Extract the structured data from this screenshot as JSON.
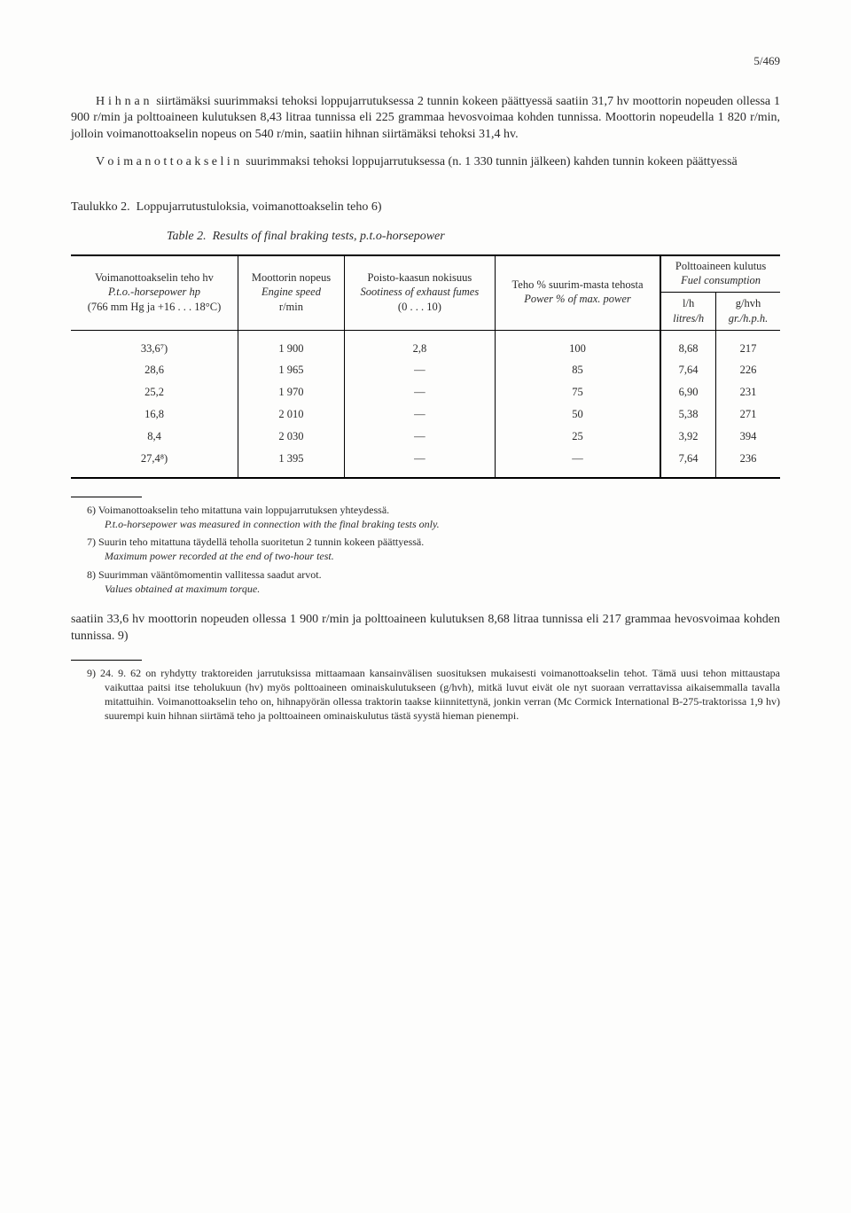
{
  "page_number": "5/469",
  "para1": "H i h n a n  siirtämäksi suurimmaksi tehoksi loppujarrutuksessa 2 tunnin kokeen päättyessä saatiin 31,7 hv moottorin nopeuden ollessa 1 900 r/min ja polttoaineen kulutuksen 8,43 litraa tunnissa eli 225 grammaa hevosvoimaa kohden tunnissa. Moottorin nopeudella 1 820 r/min, jolloin voimanottoakselin nopeus on 540 r/min, saatiin hihnan siirtämäksi tehoksi 31,4 hv.",
  "para2": "V o i m a n o t t o a k s e l i n  suurimmaksi tehoksi loppujarrutuksessa (n. 1 330 tunnin jälkeen) kahden tunnin kokeen päättyessä",
  "table_caption": "Taulukko 2.  Loppujarrutustuloksia, voimanottoakselin teho 6)",
  "table_caption_sub": "Table 2.  Results of final braking tests, p.t.o-horsepower",
  "headers": {
    "col1_a": "Voimanottoakselin teho hv",
    "col1_b": "P.t.o.-horsepower hp",
    "col1_c": "(766 mm Hg ja +16 . . . 18°C)",
    "col2_a": "Moottorin nopeus",
    "col2_b": "Engine speed",
    "col2_c": "r/min",
    "col3_a": "Poisto-kaasun nokisuus",
    "col3_b": "Sootiness of exhaust fumes",
    "col3_c": "(0 . . . 10)",
    "col4_a": "Teho % suurim-masta tehosta",
    "col4_b": "Power % of max. power",
    "col5": "Polttoaineen kulutus",
    "col5_b": "Fuel consumption",
    "col5_1a": "l/h",
    "col5_1b": "litres/h",
    "col5_2a": "g/hvh",
    "col5_2b": "gr./h.p.h."
  },
  "rows": [
    {
      "c1": "33,6⁷)",
      "c2": "1 900",
      "c3": "2,8",
      "c4": "100",
      "c5": "8,68",
      "c6": "217"
    },
    {
      "c1": "28,6",
      "c2": "1 965",
      "c3": "—",
      "c4": "85",
      "c5": "7,64",
      "c6": "226"
    },
    {
      "c1": "25,2",
      "c2": "1 970",
      "c3": "—",
      "c4": "75",
      "c5": "6,90",
      "c6": "231"
    },
    {
      "c1": "16,8",
      "c2": "2 010",
      "c3": "—",
      "c4": "50",
      "c5": "5,38",
      "c6": "271"
    },
    {
      "c1": "8,4",
      "c2": "2 030",
      "c3": "—",
      "c4": "25",
      "c5": "3,92",
      "c6": "394"
    },
    {
      "c1": "27,4⁸)",
      "c2": "1 395",
      "c3": "—",
      "c4": "—",
      "c5": "7,64",
      "c6": "236"
    }
  ],
  "footnotes_a": [
    {
      "n": "6)",
      "fi": "Voimanottoakselin teho mitattuna vain loppujarrutuksen yhteydessä.",
      "en": "P.t.o-horsepower was measured in connection with the final braking tests only."
    },
    {
      "n": "7)",
      "fi": "Suurin teho mitattuna täydellä teholla suoritetun 2 tunnin kokeen päättyessä.",
      "en": "Maximum power recorded at the end of two-hour test."
    },
    {
      "n": "8)",
      "fi": "Suurimman vääntömomentin vallitessa saadut arvot.",
      "en": "Values obtained at maximum torque."
    }
  ],
  "para3": "saatiin 33,6 hv moottorin nopeuden ollessa 1 900 r/min ja polttoaineen kulutuksen 8,68 litraa tunnissa eli 217 grammaa hevosvoimaa kohden tunnissa. 9)",
  "footnotes_b": [
    {
      "n": "9)",
      "fi": "24. 9. 62 on ryhdytty traktoreiden jarrutuksissa mittaamaan kansainvälisen suosituksen mukaisesti voimanottoakselin tehot. Tämä uusi tehon mittaustapa vaikuttaa paitsi itse teholukuun (hv) myös polttoaineen ominaiskulutukseen (g/hvh), mitkä luvut eivät ole nyt suoraan verrattavissa aikaisemmalla tavalla mitattuihin. Voimanottoakselin teho on, hihnapyörän ollessa traktorin taakse kiinnitettynä, jonkin verran (Mc Cormick International B-275-traktorissa 1,9 hv) suurempi kuin hihnan siirtämä teho ja polttoaineen ominaiskulutus tästä syystä hieman pienempi."
    }
  ]
}
